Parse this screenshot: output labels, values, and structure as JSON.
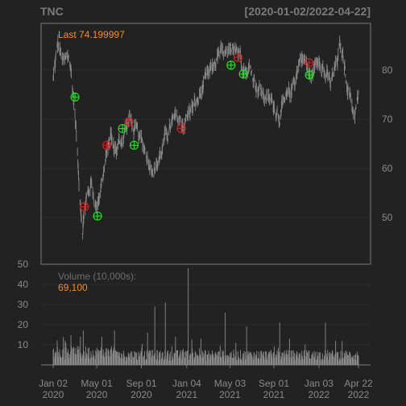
{
  "header": {
    "symbol": "TNC",
    "date_range": "[2020-01-02/2022-04-22]"
  },
  "price_panel": {
    "last_label": "Last 74.199997"
  },
  "volume_panel": {
    "label": "Volume (10,000s):",
    "last_value": "69,100"
  },
  "colors": {
    "background": "#222222",
    "panel_border": "#7a7a7a",
    "price_bars": "#8a8a8a",
    "volume_bars": "#8a8a8a",
    "last_value_text": "#ff8c1a",
    "buy_marker": "#22dd22",
    "sell_marker": "#cc2222"
  },
  "chart_data": {
    "type": "line",
    "style": "ohlc-bars",
    "title": "TNC",
    "date_range": "[2020-01-02/2022-04-22]",
    "x_axis": {
      "ticks": [
        {
          "line1": "Jan 02",
          "line2": "2020",
          "date": "2020-01-02"
        },
        {
          "line1": "May 01",
          "line2": "2020",
          "date": "2020-05-01"
        },
        {
          "line1": "Sep 01",
          "line2": "2020",
          "date": "2020-09-01"
        },
        {
          "line1": "Jan 04",
          "line2": "2021",
          "date": "2021-01-04"
        },
        {
          "line1": "May 03",
          "line2": "2021",
          "date": "2021-05-03"
        },
        {
          "line1": "Sep 01",
          "line2": "2021",
          "date": "2021-09-01"
        },
        {
          "line1": "Jan 03",
          "line2": "2022",
          "date": "2022-01-03"
        },
        {
          "line1": "Apr 22",
          "line2": "2022",
          "date": "2022-04-22"
        }
      ]
    },
    "price": {
      "ylim": [
        40.5,
        89.5
      ],
      "ticks": [
        50,
        60,
        70,
        80
      ],
      "grid": true,
      "last": 74.199997,
      "series_points": [
        [
          "2020-01-02",
          78
        ],
        [
          "2020-01-15",
          85
        ],
        [
          "2020-02-01",
          81
        ],
        [
          "2020-02-15",
          83
        ],
        [
          "2020-02-25",
          76
        ],
        [
          "2020-03-05",
          68
        ],
        [
          "2020-03-12",
          58
        ],
        [
          "2020-03-23",
          48
        ],
        [
          "2020-04-01",
          53
        ],
        [
          "2020-04-15",
          57
        ],
        [
          "2020-04-30",
          52
        ],
        [
          "2020-05-14",
          57
        ],
        [
          "2020-05-25",
          61
        ],
        [
          "2020-06-08",
          67
        ],
        [
          "2020-06-15",
          64
        ],
        [
          "2020-06-25",
          64
        ],
        [
          "2020-07-10",
          66
        ],
        [
          "2020-07-20",
          68
        ],
        [
          "2020-07-31",
          70
        ],
        [
          "2020-08-10",
          68
        ],
        [
          "2020-08-25",
          66
        ],
        [
          "2020-09-10",
          64
        ],
        [
          "2020-09-25",
          61
        ],
        [
          "2020-10-10",
          60
        ],
        [
          "2020-10-25",
          63
        ],
        [
          "2020-11-10",
          67
        ],
        [
          "2020-11-25",
          69
        ],
        [
          "2020-12-10",
          70
        ],
        [
          "2020-12-28",
          69
        ],
        [
          "2021-01-15",
          72
        ],
        [
          "2021-02-01",
          73
        ],
        [
          "2021-02-15",
          76
        ],
        [
          "2021-03-01",
          78
        ],
        [
          "2021-03-15",
          80
        ],
        [
          "2021-04-01",
          83
        ],
        [
          "2021-04-15",
          83
        ],
        [
          "2021-05-01",
          82
        ],
        [
          "2021-05-15",
          86
        ],
        [
          "2021-06-01",
          83
        ],
        [
          "2021-06-15",
          80
        ],
        [
          "2021-06-30",
          80
        ],
        [
          "2021-07-15",
          77
        ],
        [
          "2021-08-01",
          75
        ],
        [
          "2021-08-15",
          74
        ],
        [
          "2021-09-01",
          73
        ],
        [
          "2021-09-15",
          71
        ],
        [
          "2021-10-01",
          73
        ],
        [
          "2021-10-15",
          75
        ],
        [
          "2021-11-01",
          79
        ],
        [
          "2021-11-15",
          83
        ],
        [
          "2021-11-30",
          81
        ],
        [
          "2021-12-10",
          78
        ],
        [
          "2021-12-20",
          80
        ],
        [
          "2022-01-05",
          83
        ],
        [
          "2022-01-20",
          79
        ],
        [
          "2022-02-05",
          77
        ],
        [
          "2022-02-20",
          81
        ],
        [
          "2022-03-01",
          84
        ],
        [
          "2022-03-10",
          83
        ],
        [
          "2022-03-20",
          78
        ],
        [
          "2022-04-01",
          74
        ],
        [
          "2022-04-10",
          71
        ],
        [
          "2022-04-22",
          74.2
        ]
      ],
      "markers": [
        {
          "date": "2020-03-02",
          "price": 74.5,
          "type": "buy"
        },
        {
          "date": "2020-03-28",
          "price": 52.2,
          "type": "sell"
        },
        {
          "date": "2020-05-03",
          "price": 50.3,
          "type": "buy"
        },
        {
          "date": "2020-05-29",
          "price": 64.7,
          "type": "sell"
        },
        {
          "date": "2020-07-11",
          "price": 68.1,
          "type": "buy"
        },
        {
          "date": "2020-07-29",
          "price": 69.5,
          "type": "sell"
        },
        {
          "date": "2020-08-12",
          "price": 64.7,
          "type": "buy"
        },
        {
          "date": "2020-12-20",
          "price": 68.1,
          "type": "sell"
        },
        {
          "date": "2021-05-06",
          "price": 81.0,
          "type": "buy"
        },
        {
          "date": "2021-05-25",
          "price": 82.6,
          "type": "sell"
        },
        {
          "date": "2021-06-09",
          "price": 79.2,
          "type": "buy"
        },
        {
          "date": "2021-12-07",
          "price": 81.5,
          "type": "sell"
        },
        {
          "date": "2021-12-08",
          "price": 79.0,
          "type": "buy"
        }
      ]
    },
    "volume": {
      "label": "Volume (10,000s):",
      "last": 69100,
      "units": "10,000s",
      "ylim": [
        0,
        50
      ],
      "ticks": [
        10,
        20,
        30,
        40,
        50
      ],
      "baseline": 6,
      "spikes": [
        [
          "2020-03-17",
          14
        ],
        [
          "2020-03-25",
          17
        ],
        [
          "2020-05-15",
          14
        ],
        [
          "2020-06-19",
          17
        ],
        [
          "2020-09-18",
          16
        ],
        [
          "2020-10-08",
          29
        ],
        [
          "2020-11-06",
          31
        ],
        [
          "2020-12-04",
          14
        ],
        [
          "2021-01-08",
          48
        ],
        [
          "2021-02-12",
          13
        ],
        [
          "2021-04-20",
          26
        ],
        [
          "2021-06-18",
          19
        ],
        [
          "2021-09-17",
          21
        ],
        [
          "2021-10-14",
          13
        ],
        [
          "2022-01-21",
          21
        ],
        [
          "2022-02-18",
          12
        ]
      ]
    }
  }
}
